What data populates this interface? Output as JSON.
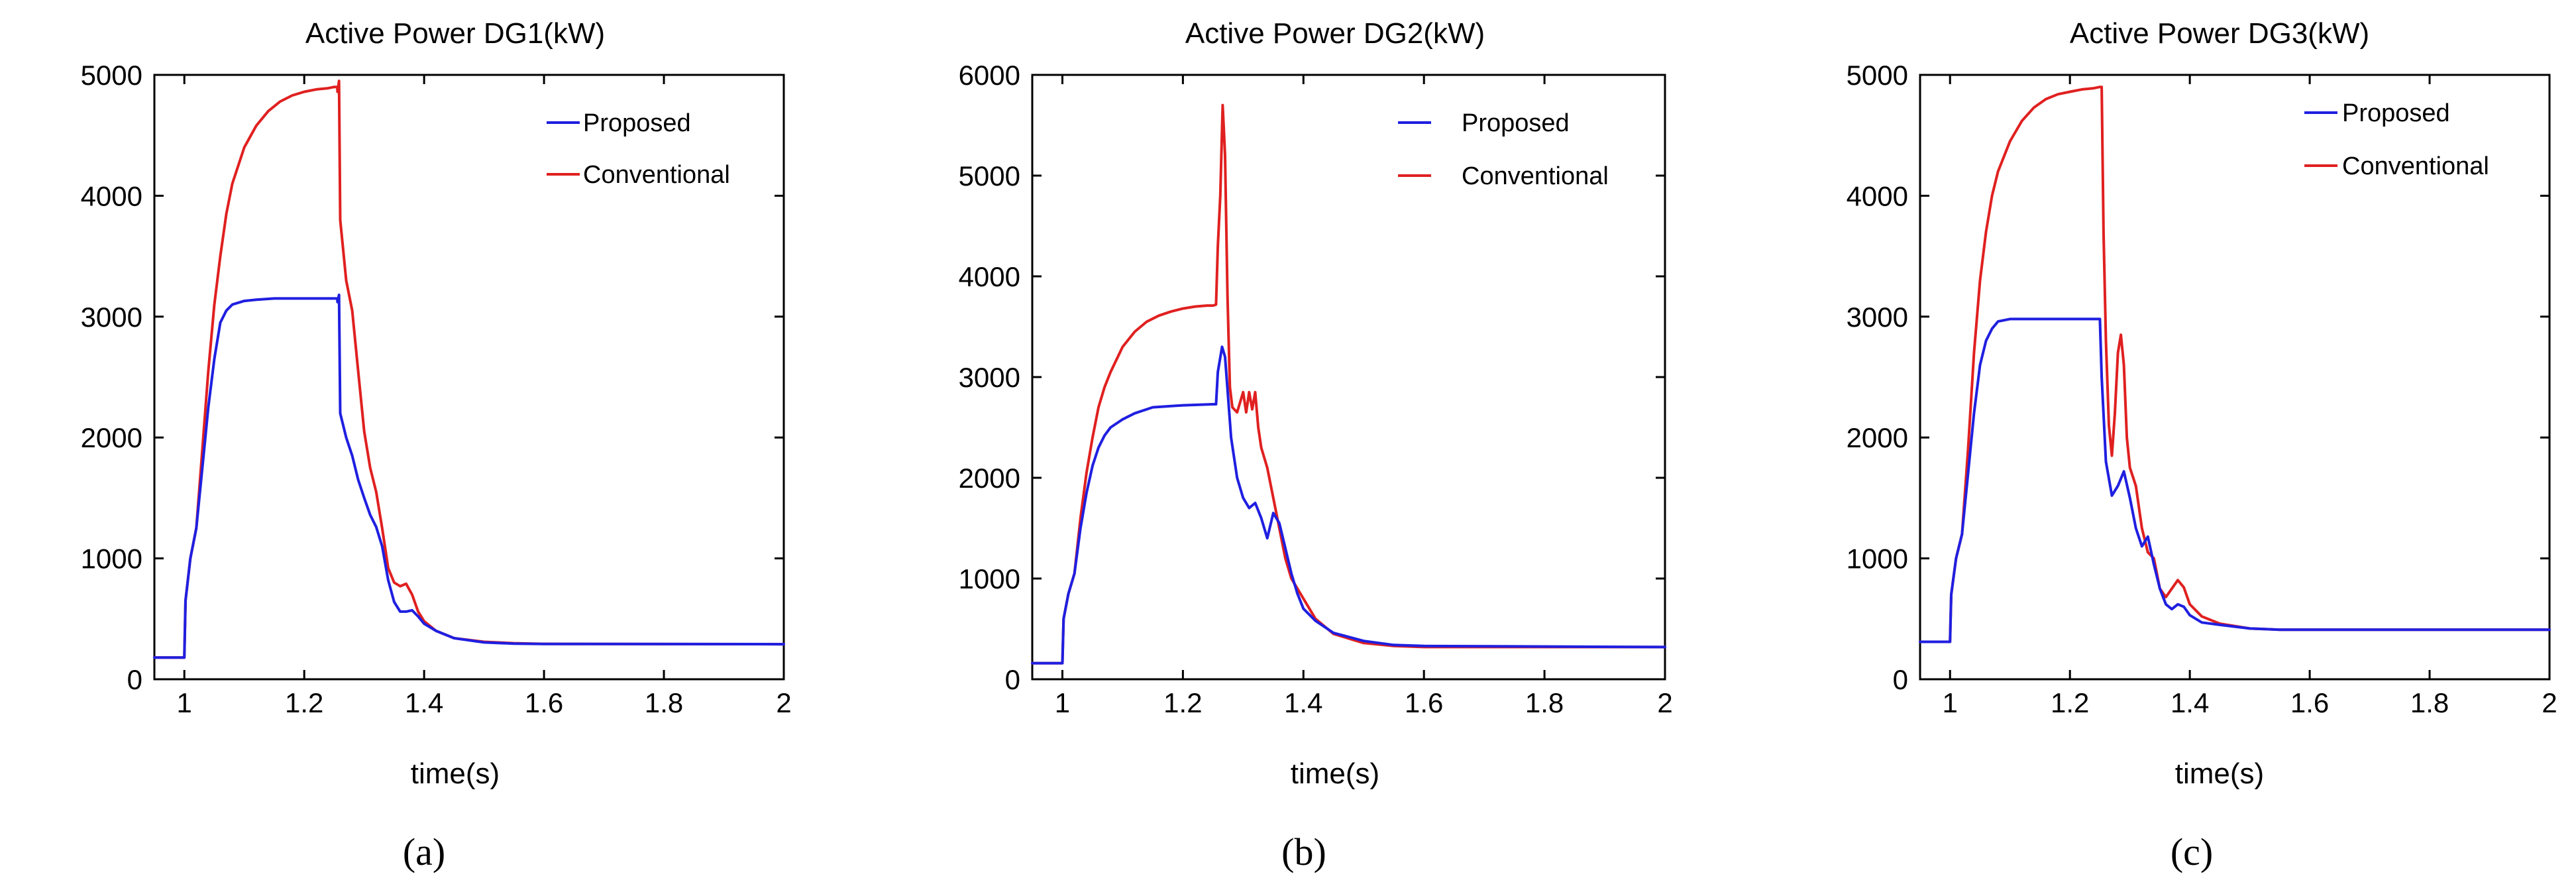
{
  "panels": [
    {
      "caption": "(a)",
      "chart_data": {
        "type": "line",
        "title": "Active Power DG1(kW)",
        "xlabel": "time(s)",
        "ylabel": "",
        "xlim": [
          0.95,
          2
        ],
        "ylim": [
          0,
          5000
        ],
        "xticks": [
          1,
          1.2,
          1.4,
          1.6,
          1.8,
          2
        ],
        "xtick_labels": [
          "1",
          "1.2",
          "1.4",
          "1.6",
          "1.8",
          "2"
        ],
        "yticks": [
          0,
          1000,
          2000,
          3000,
          4000,
          5000
        ],
        "ytick_labels": [
          "0",
          "1000",
          "2000",
          "3000",
          "4000",
          "5000"
        ],
        "grid": false,
        "legend": "top-right",
        "series": [
          {
            "name": "Proposed",
            "color": "#1f1fe0",
            "x": [
              0.95,
              1.0,
              1.002,
              1.01,
              1.02,
              1.03,
              1.04,
              1.05,
              1.06,
              1.07,
              1.08,
              1.1,
              1.12,
              1.15,
              1.2,
              1.255,
              1.2555,
              1.258,
              1.26,
              1.27,
              1.28,
              1.29,
              1.3,
              1.31,
              1.32,
              1.33,
              1.34,
              1.35,
              1.36,
              1.37,
              1.38,
              1.39,
              1.4,
              1.42,
              1.45,
              1.5,
              1.55,
              1.6,
              2.0
            ],
            "y": [
              180,
              180,
              650,
              1000,
              1250,
              1750,
              2250,
              2650,
              2950,
              3050,
              3100,
              3130,
              3140,
              3150,
              3150,
              3150,
              3120,
              3180,
              2200,
              2000,
              1850,
              1650,
              1500,
              1360,
              1260,
              1100,
              820,
              640,
              560,
              560,
              570,
              520,
              460,
              400,
              340,
              305,
              295,
              292,
              290
            ]
          },
          {
            "name": "Conventional",
            "color": "#e02020",
            "x": [
              0.95,
              1.0,
              1.002,
              1.01,
              1.02,
              1.03,
              1.04,
              1.05,
              1.06,
              1.07,
              1.08,
              1.1,
              1.12,
              1.14,
              1.16,
              1.18,
              1.2,
              1.22,
              1.24,
              1.25,
              1.255,
              1.2555,
              1.258,
              1.26,
              1.27,
              1.28,
              1.29,
              1.3,
              1.31,
              1.32,
              1.33,
              1.34,
              1.35,
              1.36,
              1.37,
              1.38,
              1.39,
              1.4,
              1.42,
              1.45,
              1.5,
              1.55,
              1.6,
              2.0
            ],
            "y": [
              180,
              180,
              650,
              1000,
              1250,
              1900,
              2550,
              3100,
              3500,
              3850,
              4100,
              4400,
              4580,
              4700,
              4780,
              4830,
              4860,
              4880,
              4890,
              4900,
              4900,
              4860,
              4950,
              3800,
              3300,
              3050,
              2550,
              2050,
              1750,
              1550,
              1250,
              920,
              800,
              770,
              790,
              700,
              560,
              480,
              400,
              340,
              310,
              298,
              293,
              290
            ]
          }
        ]
      }
    },
    {
      "caption": "(b)",
      "chart_data": {
        "type": "line",
        "title": "Active Power DG2(kW)",
        "xlabel": "time(s)",
        "ylabel": "",
        "xlim": [
          0.95,
          2
        ],
        "ylim": [
          0,
          6000
        ],
        "xticks": [
          1,
          1.2,
          1.4,
          1.6,
          1.8,
          2
        ],
        "xtick_labels": [
          "1",
          "1.2",
          "1.4",
          "1.6",
          "1.8",
          "2"
        ],
        "yticks": [
          0,
          1000,
          2000,
          3000,
          4000,
          5000,
          6000
        ],
        "ytick_labels": [
          "0",
          "1000",
          "2000",
          "3000",
          "4000",
          "5000",
          "6000"
        ],
        "grid": false,
        "legend": "top-right",
        "series": [
          {
            "name": "Proposed",
            "color": "#1f1fe0",
            "x": [
              0.95,
              1.0,
              1.002,
              1.01,
              1.02,
              1.03,
              1.04,
              1.05,
              1.06,
              1.07,
              1.08,
              1.1,
              1.12,
              1.15,
              1.2,
              1.25,
              1.255,
              1.258,
              1.265,
              1.27,
              1.275,
              1.28,
              1.29,
              1.3,
              1.31,
              1.32,
              1.33,
              1.34,
              1.35,
              1.36,
              1.37,
              1.38,
              1.39,
              1.4,
              1.42,
              1.45,
              1.5,
              1.55,
              1.6,
              2.0
            ],
            "y": [
              160,
              160,
              600,
              850,
              1050,
              1500,
              1850,
              2120,
              2300,
              2420,
              2500,
              2580,
              2640,
              2700,
              2720,
              2730,
              2730,
              3050,
              3300,
              3200,
              2800,
              2400,
              2000,
              1800,
              1700,
              1750,
              1600,
              1400,
              1650,
              1550,
              1300,
              1050,
              850,
              700,
              580,
              460,
              380,
              340,
              330,
              320
            ]
          },
          {
            "name": "Conventional",
            "color": "#e02020",
            "x": [
              0.95,
              1.0,
              1.002,
              1.01,
              1.02,
              1.03,
              1.04,
              1.05,
              1.06,
              1.07,
              1.08,
              1.1,
              1.12,
              1.14,
              1.16,
              1.18,
              1.2,
              1.22,
              1.24,
              1.25,
              1.255,
              1.258,
              1.262,
              1.266,
              1.27,
              1.274,
              1.278,
              1.282,
              1.29,
              1.3,
              1.305,
              1.31,
              1.315,
              1.32,
              1.325,
              1.33,
              1.34,
              1.35,
              1.36,
              1.37,
              1.38,
              1.39,
              1.4,
              1.42,
              1.45,
              1.5,
              1.55,
              1.6,
              2.0
            ],
            "y": [
              160,
              160,
              600,
              850,
              1050,
              1600,
              2050,
              2400,
              2700,
              2900,
              3050,
              3300,
              3450,
              3550,
              3610,
              3650,
              3680,
              3700,
              3710,
              3710,
              3720,
              4300,
              4800,
              5700,
              5200,
              3800,
              2900,
              2700,
              2650,
              2850,
              2650,
              2850,
              2680,
              2850,
              2500,
              2300,
              2100,
              1800,
              1500,
              1200,
              1000,
              900,
              800,
              600,
              450,
              360,
              330,
              320,
              320
            ]
          }
        ]
      }
    },
    {
      "caption": "(c)",
      "chart_data": {
        "type": "line",
        "title": "Active Power DG3(kW)",
        "xlabel": "time(s)",
        "ylabel": "",
        "xlim": [
          0.95,
          2
        ],
        "ylim": [
          0,
          5000
        ],
        "xticks": [
          1,
          1.2,
          1.4,
          1.6,
          1.8,
          2
        ],
        "xtick_labels": [
          "1",
          "1.2",
          "1.4",
          "1.6",
          "1.8",
          "2"
        ],
        "yticks": [
          0,
          1000,
          2000,
          3000,
          4000,
          5000
        ],
        "ytick_labels": [
          "0",
          "1000",
          "2000",
          "3000",
          "4000",
          "5000"
        ],
        "grid": false,
        "legend": "top-right",
        "series": [
          {
            "name": "Proposed",
            "color": "#1f1fe0",
            "x": [
              0.95,
              1.0,
              1.002,
              1.01,
              1.02,
              1.03,
              1.04,
              1.05,
              1.06,
              1.07,
              1.08,
              1.1,
              1.15,
              1.2,
              1.25,
              1.253,
              1.26,
              1.27,
              1.28,
              1.29,
              1.3,
              1.31,
              1.32,
              1.33,
              1.34,
              1.35,
              1.36,
              1.37,
              1.38,
              1.39,
              1.4,
              1.42,
              1.45,
              1.5,
              1.55,
              1.6,
              2.0
            ],
            "y": [
              310,
              310,
              700,
              1000,
              1200,
              1700,
              2200,
              2600,
              2800,
              2900,
              2960,
              2980,
              2980,
              2980,
              2980,
              2500,
              1800,
              1520,
              1600,
              1720,
              1500,
              1250,
              1100,
              1180,
              950,
              750,
              620,
              580,
              620,
              600,
              530,
              470,
              450,
              420,
              410,
              410,
              410
            ]
          },
          {
            "name": "Conventional",
            "color": "#e02020",
            "x": [
              0.95,
              1.0,
              1.002,
              1.01,
              1.02,
              1.03,
              1.04,
              1.05,
              1.06,
              1.07,
              1.08,
              1.1,
              1.12,
              1.14,
              1.16,
              1.18,
              1.2,
              1.22,
              1.24,
              1.25,
              1.253,
              1.256,
              1.26,
              1.265,
              1.27,
              1.275,
              1.28,
              1.285,
              1.29,
              1.295,
              1.3,
              1.31,
              1.32,
              1.33,
              1.34,
              1.35,
              1.36,
              1.37,
              1.38,
              1.39,
              1.4,
              1.42,
              1.45,
              1.5,
              1.55,
              1.6,
              2.0
            ],
            "y": [
              310,
              310,
              700,
              1000,
              1200,
              1900,
              2700,
              3300,
              3700,
              4000,
              4200,
              4450,
              4620,
              4730,
              4800,
              4840,
              4860,
              4880,
              4890,
              4900,
              4900,
              3700,
              2800,
              2100,
              1850,
              2200,
              2700,
              2850,
              2600,
              2000,
              1750,
              1600,
              1250,
              1050,
              1000,
              750,
              680,
              750,
              820,
              760,
              620,
              520,
              460,
              420,
              410,
              410,
              410
            ]
          }
        ]
      }
    }
  ]
}
